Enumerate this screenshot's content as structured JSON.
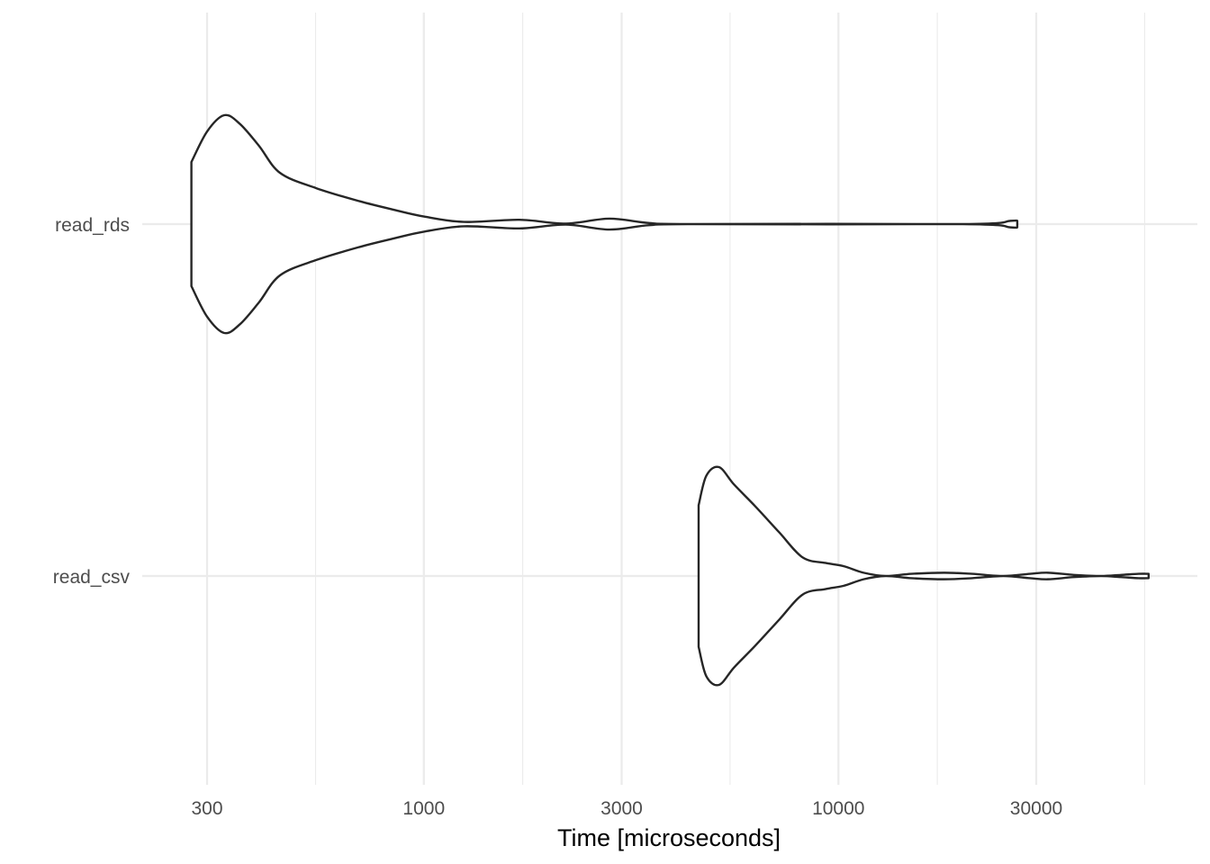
{
  "chart_data": {
    "type": "violin",
    "orientation": "horizontal",
    "title": "",
    "xlabel": "Time [microseconds]",
    "ylabel": "",
    "x_scale": "log10",
    "xlim": [
      250,
      62000
    ],
    "x_ticks": [
      300,
      1000,
      3000,
      10000,
      30000
    ],
    "x_tick_labels": [
      "300",
      "1000",
      "3000",
      "10000",
      "30000"
    ],
    "x_minor_ticks": [
      548,
      1732,
      5477,
      17320,
      54772
    ],
    "categories": [
      "read_rds",
      "read_csv"
    ],
    "series": [
      {
        "category": "read_rds",
        "min": 275,
        "max": 27000,
        "mode": 330,
        "density": [
          [
            275,
            0.57
          ],
          [
            300,
            0.85
          ],
          [
            330,
            1.0
          ],
          [
            360,
            0.92
          ],
          [
            400,
            0.72
          ],
          [
            450,
            0.47
          ],
          [
            550,
            0.33
          ],
          [
            700,
            0.21
          ],
          [
            850,
            0.13
          ],
          [
            1000,
            0.07
          ],
          [
            1250,
            0.02
          ],
          [
            1700,
            0.04
          ],
          [
            2200,
            0.005
          ],
          [
            2800,
            0.05
          ],
          [
            3500,
            0.01
          ],
          [
            4500,
            0.0
          ],
          [
            20000,
            0.0
          ],
          [
            26000,
            0.03
          ],
          [
            27000,
            0.03
          ]
        ]
      },
      {
        "category": "read_csv",
        "min": 4600,
        "max": 56000,
        "mode": 5150,
        "density": [
          [
            4600,
            0.65
          ],
          [
            4800,
            0.92
          ],
          [
            5150,
            1.0
          ],
          [
            5600,
            0.84
          ],
          [
            6300,
            0.64
          ],
          [
            7200,
            0.4
          ],
          [
            8200,
            0.17
          ],
          [
            9300,
            0.12
          ],
          [
            10300,
            0.09
          ],
          [
            11500,
            0.03
          ],
          [
            13000,
            0.0
          ],
          [
            15000,
            0.02
          ],
          [
            18000,
            0.03
          ],
          [
            21000,
            0.02
          ],
          [
            25000,
            0.0
          ],
          [
            29000,
            0.02
          ],
          [
            32000,
            0.03
          ],
          [
            37000,
            0.01
          ],
          [
            43000,
            0.0
          ],
          [
            48000,
            0.01
          ],
          [
            53000,
            0.02
          ],
          [
            56000,
            0.02
          ]
        ]
      }
    ],
    "grid": true,
    "colors": {
      "outline": "#262626",
      "fill": "#ffffff",
      "grid": "#ebebeb",
      "tick_text": "#4d4d4d",
      "title_text": "#000000"
    }
  }
}
